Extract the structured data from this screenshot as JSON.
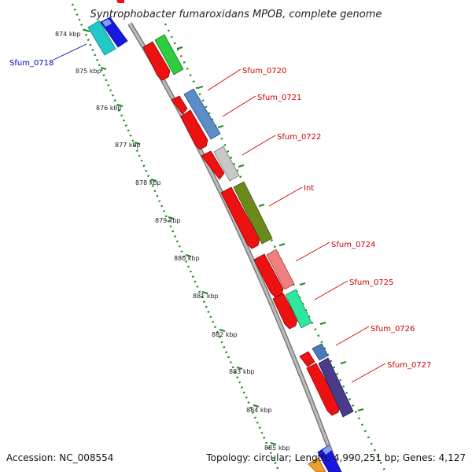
{
  "title": "Syntrophobacter fumaroxidans MPOB, complete genome",
  "footer": {
    "accession": "Accession: NC_008554",
    "summary": "Topology: circular; Length: 4,990,251 bp; Genes: 4,127"
  },
  "ruler": {
    "ticks": [
      "874 kbp",
      "875 kbp",
      "876 kbp",
      "877 kbp",
      "878 kbp",
      "879 kbp",
      "880 kbp",
      "881 kbp",
      "882 kbp",
      "883 kbp",
      "884 kbp",
      "885 kbp"
    ]
  },
  "gene_labels": [
    {
      "text": "Sfum_0718",
      "color": "#0000cc"
    },
    {
      "text": "Sfum_0720",
      "color": "#cc0000"
    },
    {
      "text": "Sfum_0721",
      "color": "#cc0000"
    },
    {
      "text": "Sfum_0722",
      "color": "#cc0000"
    },
    {
      "text": "Int",
      "color": "#cc0000"
    },
    {
      "text": "Sfum_0724",
      "color": "#cc0000"
    },
    {
      "text": "Sfum_0725",
      "color": "#cc0000"
    },
    {
      "text": "Sfum_0726",
      "color": "#cc0000"
    },
    {
      "text": "Sfum_0727",
      "color": "#cc0000"
    }
  ],
  "colors": {
    "backbone": "#8c8c8c",
    "ruler_dots": "#1f8a1f",
    "red_track": "#ee1111"
  }
}
